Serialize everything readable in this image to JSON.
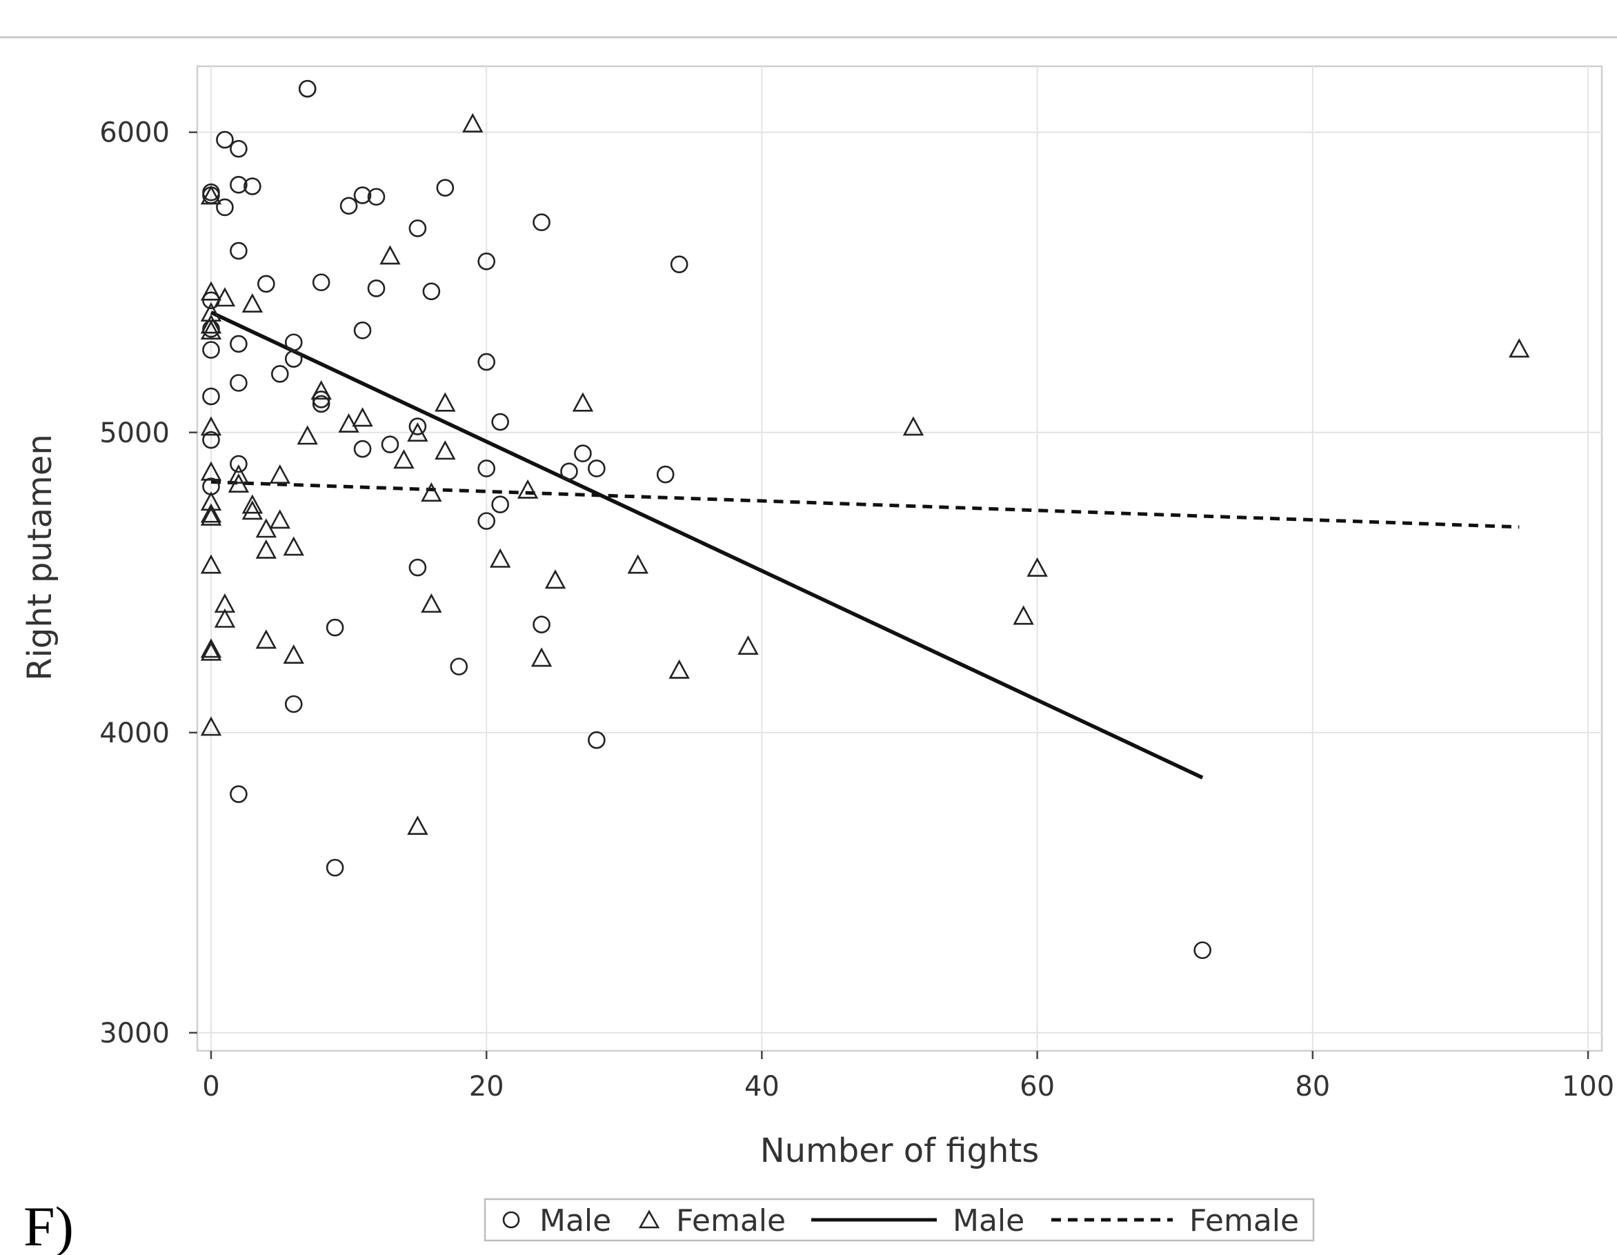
{
  "panel_label": "F)",
  "chart_data": {
    "type": "scatter",
    "xlabel": "Number of fights",
    "ylabel": "Right putamen",
    "xlim": [
      -1,
      101
    ],
    "ylim": [
      2940,
      6220
    ],
    "x_ticks": [
      0,
      20,
      40,
      60,
      80,
      100
    ],
    "y_ticks": [
      3000,
      4000,
      5000,
      6000
    ],
    "x_tick_labels": [
      "0",
      "20",
      "40",
      "60",
      "80",
      "100"
    ],
    "y_tick_labels": [
      "3000",
      "4000",
      "5000",
      "6000"
    ],
    "grid": true,
    "legend_position": "bottom",
    "legend": [
      {
        "label": "Male",
        "kind": "circle-marker"
      },
      {
        "label": "Female",
        "kind": "triangle-marker"
      },
      {
        "label": "Male",
        "kind": "solid-line"
      },
      {
        "label": "Female",
        "kind": "dashed-line"
      }
    ],
    "series": [
      {
        "name": "Male",
        "marker": "circle",
        "points": [
          [
            7,
            6145
          ],
          [
            1,
            5975
          ],
          [
            2,
            5945
          ],
          [
            2,
            5825
          ],
          [
            3,
            5820
          ],
          [
            0,
            5800
          ],
          [
            0,
            5790
          ],
          [
            1,
            5750
          ],
          [
            2,
            5605
          ],
          [
            0,
            5440
          ],
          [
            0,
            5345
          ],
          [
            2,
            5295
          ],
          [
            0,
            5275
          ],
          [
            2,
            5165
          ],
          [
            0,
            5120
          ],
          [
            0,
            4975
          ],
          [
            2,
            4895
          ],
          [
            0,
            4820
          ],
          [
            4,
            5495
          ],
          [
            5,
            5195
          ],
          [
            6,
            5300
          ],
          [
            6,
            5245
          ],
          [
            6,
            4095
          ],
          [
            7,
            6145
          ],
          [
            8,
            5500
          ],
          [
            8,
            5110
          ],
          [
            8,
            5095
          ],
          [
            9,
            4350
          ],
          [
            9,
            3550
          ],
          [
            10,
            5755
          ],
          [
            11,
            5790
          ],
          [
            11,
            5340
          ],
          [
            11,
            4945
          ],
          [
            12,
            5785
          ],
          [
            12,
            5480
          ],
          [
            13,
            4960
          ],
          [
            15,
            5680
          ],
          [
            15,
            5020
          ],
          [
            15,
            4550
          ],
          [
            16,
            5470
          ],
          [
            17,
            5815
          ],
          [
            18,
            4220
          ],
          [
            20,
            5570
          ],
          [
            20,
            5235
          ],
          [
            20,
            4880
          ],
          [
            20,
            4705
          ],
          [
            21,
            5035
          ],
          [
            21,
            4760
          ],
          [
            24,
            5700
          ],
          [
            24,
            4360
          ],
          [
            26,
            4870
          ],
          [
            27,
            4930
          ],
          [
            28,
            4880
          ],
          [
            28,
            3975
          ],
          [
            33,
            4860
          ],
          [
            34,
            5560
          ],
          [
            2,
            3795
          ],
          [
            72,
            3275
          ]
        ]
      },
      {
        "name": "Female",
        "marker": "triangle",
        "points": [
          [
            19,
            6030
          ],
          [
            0,
            5790
          ],
          [
            0,
            5470
          ],
          [
            1,
            5450
          ],
          [
            0,
            5400
          ],
          [
            0,
            5360
          ],
          [
            0,
            5340
          ],
          [
            0,
            5020
          ],
          [
            0,
            4870
          ],
          [
            0,
            4770
          ],
          [
            0,
            4730
          ],
          [
            0,
            4720
          ],
          [
            0,
            4560
          ],
          [
            0,
            4280
          ],
          [
            0,
            4270
          ],
          [
            0,
            4020
          ],
          [
            1,
            4430
          ],
          [
            1,
            4380
          ],
          [
            2,
            4860
          ],
          [
            2,
            4830
          ],
          [
            3,
            5430
          ],
          [
            3,
            4760
          ],
          [
            3,
            4740
          ],
          [
            4,
            4680
          ],
          [
            4,
            4610
          ],
          [
            4,
            4310
          ],
          [
            5,
            4860
          ],
          [
            5,
            4710
          ],
          [
            6,
            4620
          ],
          [
            6,
            4260
          ],
          [
            7,
            4990
          ],
          [
            8,
            5140
          ],
          [
            10,
            5030
          ],
          [
            11,
            5050
          ],
          [
            13,
            5590
          ],
          [
            14,
            4910
          ],
          [
            15,
            5000
          ],
          [
            15,
            3690
          ],
          [
            16,
            4800
          ],
          [
            16,
            4430
          ],
          [
            17,
            5100
          ],
          [
            17,
            4940
          ],
          [
            21,
            4580
          ],
          [
            23,
            4810
          ],
          [
            24,
            4250
          ],
          [
            25,
            4510
          ],
          [
            27,
            5100
          ],
          [
            31,
            4560
          ],
          [
            34,
            4210
          ],
          [
            39,
            4290
          ],
          [
            51,
            5020
          ],
          [
            59,
            4390
          ],
          [
            60,
            4550
          ],
          [
            95,
            5280
          ]
        ]
      }
    ],
    "fit_lines": [
      {
        "name": "Male",
        "style": "solid",
        "x": [
          0,
          72
        ],
        "y": [
          5400,
          3850
        ]
      },
      {
        "name": "Female",
        "style": "dashed",
        "x": [
          0,
          95
        ],
        "y": [
          4835,
          4685
        ]
      }
    ]
  }
}
